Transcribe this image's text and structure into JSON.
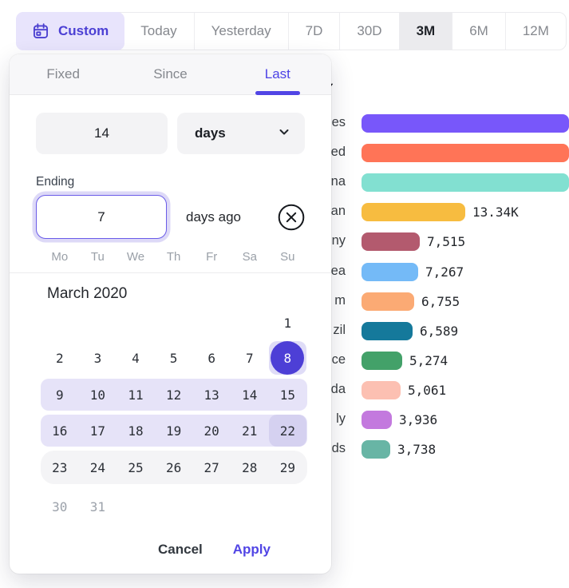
{
  "toolbar": {
    "custom_label": "Custom",
    "items": [
      {
        "label": "Today",
        "selected": false
      },
      {
        "label": "Yesterday",
        "selected": false
      },
      {
        "label": "7D",
        "selected": false
      },
      {
        "label": "30D",
        "selected": false
      },
      {
        "label": "3M",
        "selected": true
      },
      {
        "label": "6M",
        "selected": false
      },
      {
        "label": "12M",
        "selected": false
      }
    ]
  },
  "popover": {
    "tabs": [
      {
        "label": "Fixed",
        "active": false
      },
      {
        "label": "Since",
        "active": false
      },
      {
        "label": "Last",
        "active": true
      }
    ],
    "duration_value": "14",
    "unit_value": "days",
    "ending_label": "Ending",
    "ending_value": "7",
    "ending_suffix": "days ago",
    "calendar": {
      "month_title": "March 2020",
      "weekdays": [
        "Mo",
        "Tu",
        "We",
        "Th",
        "Fr",
        "Sa",
        "Su"
      ],
      "rows": [
        {
          "style": "plain",
          "days": [
            "",
            "",
            "",
            "",
            "",
            "",
            "1"
          ]
        },
        {
          "style": "none",
          "days": [
            "2",
            "3",
            "4",
            "5",
            "6",
            "7",
            "8"
          ],
          "selected": "8"
        },
        {
          "style": "range",
          "days": [
            "9",
            "10",
            "11",
            "12",
            "13",
            "14",
            "15"
          ]
        },
        {
          "style": "range",
          "days": [
            "16",
            "17",
            "18",
            "19",
            "20",
            "21",
            "22"
          ],
          "emphasized": "22"
        },
        {
          "style": "gray",
          "days": [
            "23",
            "24",
            "25",
            "26",
            "27",
            "28",
            "29"
          ]
        },
        {
          "style": "muted",
          "days": [
            "30",
            "31",
            "",
            "",
            "",
            "",
            ""
          ]
        }
      ]
    },
    "footer": {
      "cancel_label": "Cancel",
      "apply_label": "Apply"
    }
  },
  "stray_check_glyph": "✓",
  "colors": {
    "accent": "#5145e5",
    "selected_day": "#4d3fd6",
    "range_highlight": "#e6e3f8",
    "chip_background": "#e8e4fc"
  },
  "chart_data": {
    "type": "bar",
    "orientation": "horizontal",
    "note": "horizontal bar list partially hidden behind date-picker popover; left labels cropped",
    "rows": [
      {
        "label": "es",
        "value": null,
        "value_label": "",
        "color": "#7857fa"
      },
      {
        "label": "ed",
        "value": null,
        "value_label": "",
        "color": "#ff7457"
      },
      {
        "label": "na",
        "value": null,
        "value_label": "",
        "color": "#82e0d1"
      },
      {
        "label": "an",
        "value": 13340,
        "value_label": "13.34K",
        "color": "#f7bc40"
      },
      {
        "label": "ny",
        "value": 7515,
        "value_label": "7,515",
        "color": "#b35a6e"
      },
      {
        "label": "ea",
        "value": 7267,
        "value_label": "7,267",
        "color": "#74baf7"
      },
      {
        "label": "m",
        "value": 6755,
        "value_label": "6,755",
        "color": "#fbaa74"
      },
      {
        "label": "zil",
        "value": 6589,
        "value_label": "6,589",
        "color": "#15799b"
      },
      {
        "label": "ce",
        "value": 5274,
        "value_label": "5,274",
        "color": "#43a169"
      },
      {
        "label": "da",
        "value": 5061,
        "value_label": "5,061",
        "color": "#fcc0b2"
      },
      {
        "label": "ly",
        "value": 3936,
        "value_label": "3,936",
        "color": "#c379de"
      },
      {
        "label": "ds",
        "value": 3738,
        "value_label": "3,738",
        "color": "#68b5a5"
      }
    ]
  }
}
